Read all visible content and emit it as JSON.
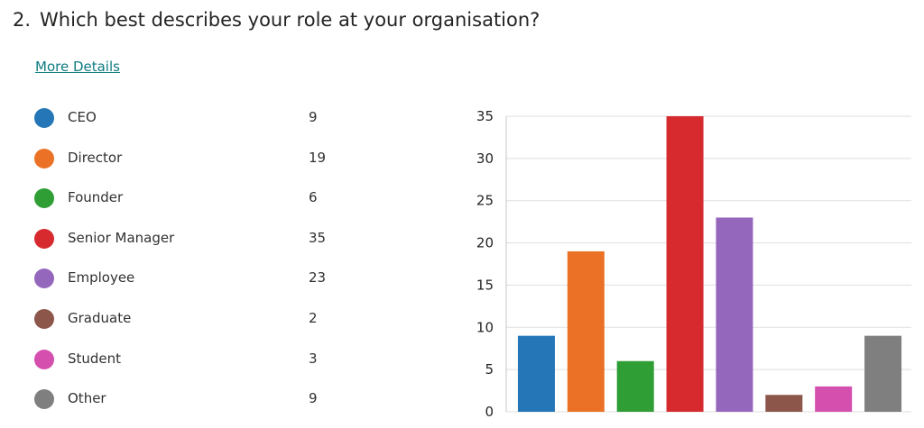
{
  "question": {
    "number": "2.",
    "title": "Which best describes your role at your organisation?"
  },
  "more_details_label": "More Details",
  "colors": {
    "ceo": "#2576b6",
    "director": "#ea7125",
    "founder": "#2f9e35",
    "senior_manager": "#d62a2f",
    "employee": "#9467bd",
    "graduate": "#8c564b",
    "student": "#d54fae",
    "other": "#7f7f7f"
  },
  "legend": [
    {
      "label": "CEO",
      "count": "9",
      "color": "#2576b6"
    },
    {
      "label": "Director",
      "count": "19",
      "color": "#ea7125"
    },
    {
      "label": "Founder",
      "count": "6",
      "color": "#2f9e35"
    },
    {
      "label": "Senior Manager",
      "count": "35",
      "color": "#d62a2f"
    },
    {
      "label": "Employee",
      "count": "23",
      "color": "#9467bd"
    },
    {
      "label": "Graduate",
      "count": "2",
      "color": "#8c564b"
    },
    {
      "label": "Student",
      "count": "3",
      "color": "#d54fae"
    },
    {
      "label": "Other",
      "count": "9",
      "color": "#7f7f7f"
    }
  ],
  "chart_data": {
    "type": "bar",
    "categories": [
      "CEO",
      "Director",
      "Founder",
      "Senior Manager",
      "Employee",
      "Graduate",
      "Student",
      "Other"
    ],
    "values": [
      9,
      19,
      6,
      35,
      23,
      2,
      3,
      9
    ],
    "colors": [
      "#2576b6",
      "#ea7125",
      "#2f9e35",
      "#d62a2f",
      "#9467bd",
      "#8c564b",
      "#d54fae",
      "#7f7f7f"
    ],
    "ylim": [
      0,
      35
    ],
    "yticks": [
      "0",
      "5",
      "10",
      "15",
      "20",
      "25",
      "30",
      "35"
    ],
    "grid": true,
    "legend": "left"
  }
}
